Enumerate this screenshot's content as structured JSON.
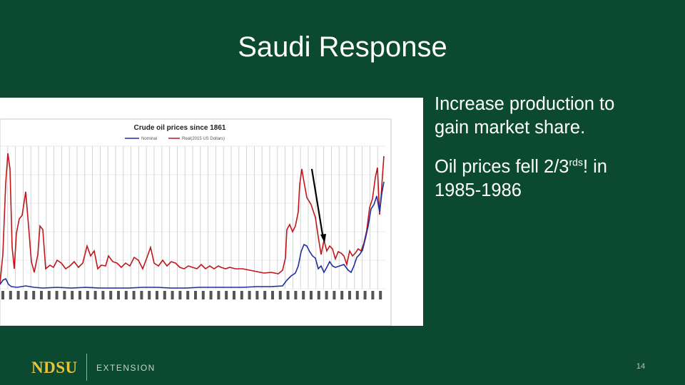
{
  "slide": {
    "title": "Saudi Response",
    "page_number": "14"
  },
  "chart_image": {
    "title": "Crude oil prices since 1861",
    "legend": [
      "Nominal",
      "Real(2015 US Dollars)"
    ],
    "colors": {
      "nominal": "#1f2fa0",
      "real": "#c0161b",
      "arrow": "#000000"
    }
  },
  "bullets": [
    {
      "text": "Increase production to gain market share."
    },
    {
      "pre": "Oil prices fell 2/3",
      "sup": "rds",
      "post": "! in 1985-1986"
    }
  ],
  "footer": {
    "logo": "NDSU",
    "unit": "EXTENSION"
  }
}
